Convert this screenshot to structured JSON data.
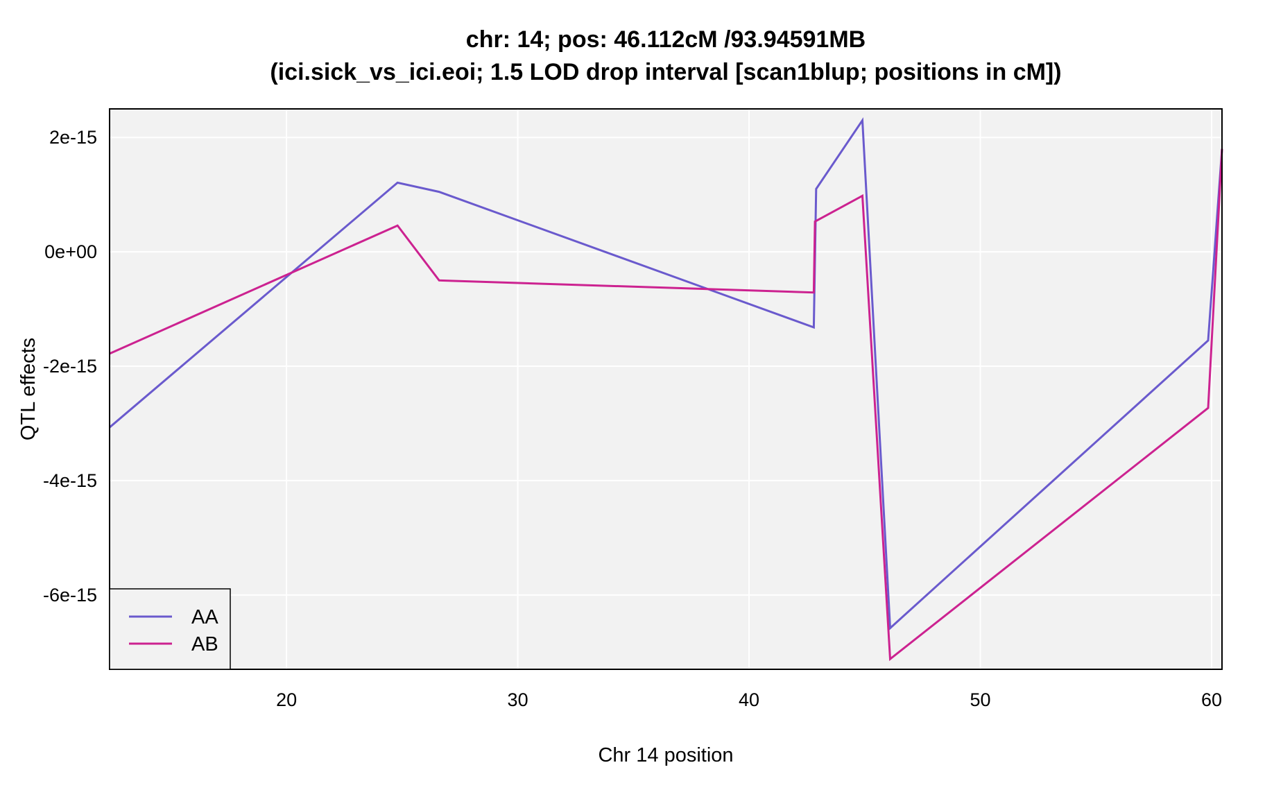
{
  "chart_data": {
    "type": "line",
    "title": "chr: 14; pos: 46.112cM /93.94591MB",
    "subtitle": "(ici.sick_vs_ici.eoi; 1.5 LOD drop interval [scan1blup; positions in cM])",
    "xlabel": "Chr 14 position",
    "ylabel": "QTL effects",
    "xlim": [
      12.35,
      60.45
    ],
    "ylim": [
      -7.3e-15,
      2.5e-15
    ],
    "x_ticks": [
      20,
      30,
      40,
      50,
      60
    ],
    "y_ticks": [
      2e-15,
      0,
      -2e-15,
      -4e-15,
      -6e-15
    ],
    "x_tick_labels": [
      "20",
      "30",
      "40",
      "50",
      "60"
    ],
    "y_tick_labels": [
      "2e-15",
      "0e+00",
      "-2e-15",
      "-4e-15",
      "-6e-15"
    ],
    "grid": true,
    "legend_position": "bottom-left",
    "series": [
      {
        "name": "AA",
        "color": "#6a5acd",
        "x": [
          12.35,
          24.8,
          26.6,
          42.8,
          42.9,
          44.9,
          46.1,
          59.85,
          60.45
        ],
        "y": [
          -3.07e-15,
          1.21e-15,
          1.05e-15,
          -1.32e-15,
          1.1e-15,
          2.3e-15,
          -6.58e-15,
          -1.55e-15,
          1.8e-15
        ]
      },
      {
        "name": "AB",
        "color": "#cc2290",
        "x": [
          12.35,
          24.8,
          26.6,
          42.8,
          42.85,
          44.9,
          46.1,
          59.85,
          60.45
        ],
        "y": [
          -1.78e-15,
          4.6e-16,
          -5e-16,
          -7.1e-16,
          5.3e-16,
          9.8e-16,
          -7.12e-15,
          -2.73e-15,
          1.8e-15
        ]
      }
    ]
  }
}
